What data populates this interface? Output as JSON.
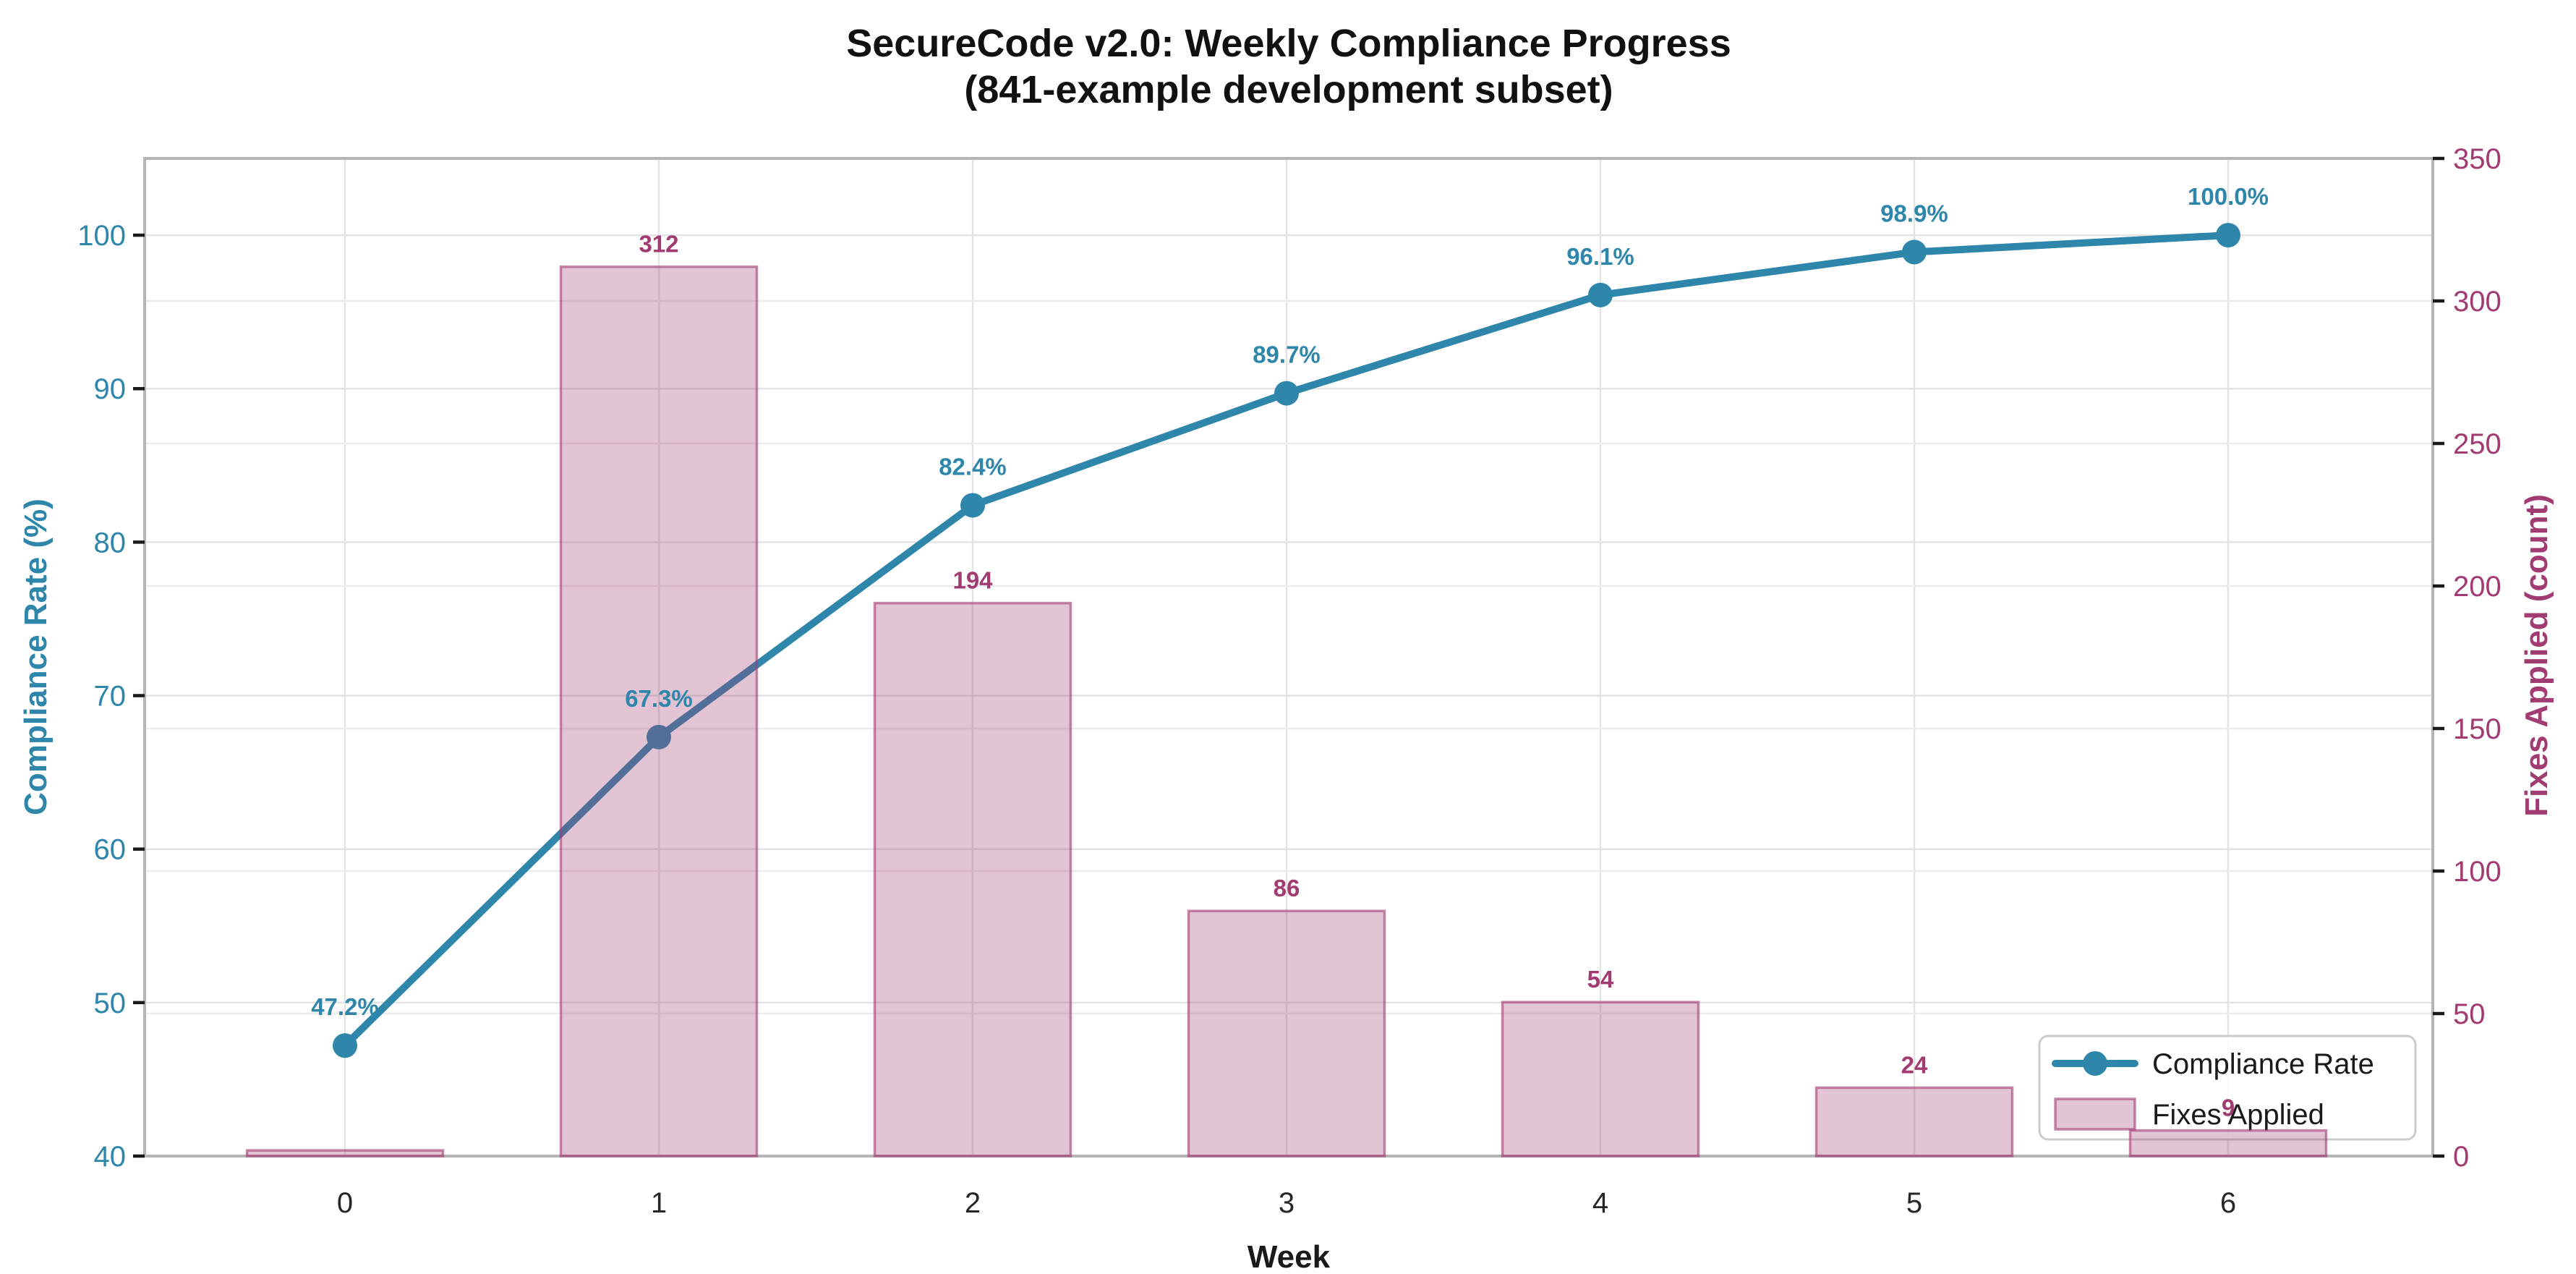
{
  "figure": {
    "title_line1": "SecureCode v2.0: Weekly Compliance Progress",
    "title_line2": "(841-example development subset)"
  },
  "axes": {
    "x": {
      "label": "Week",
      "tick_labels": [
        "0",
        "1",
        "2",
        "3",
        "4",
        "5",
        "6"
      ],
      "tick_color": "#262626"
    },
    "y_left": {
      "label": "Compliance Rate (%)",
      "tick_labels": [
        "40",
        "50",
        "60",
        "70",
        "80",
        "90",
        "100"
      ],
      "color": "#2E86AB"
    },
    "y_right": {
      "label": "Fixes Applied (count)",
      "tick_labels": [
        "0",
        "50",
        "100",
        "150",
        "200",
        "250",
        "300",
        "350"
      ],
      "color": "#A23B72"
    }
  },
  "legend": {
    "items": [
      {
        "label": "Compliance Rate",
        "swatch": "line-with-dot-marker"
      },
      {
        "label": "Fixes Applied",
        "swatch": "bar-rectangle"
      }
    ]
  },
  "chart_data": {
    "type": "combo-line-bar",
    "title": "SecureCode v2.0: Weekly Compliance Progress (841-example development subset)",
    "xlabel": "Week",
    "x": [
      0,
      1,
      2,
      3,
      4,
      5,
      6
    ],
    "grid": true,
    "legend_position": "lower right",
    "y_left": {
      "label": "Compliance Rate (%)",
      "lim": [
        40,
        105
      ],
      "ticks": [
        40,
        50,
        60,
        70,
        80,
        90,
        100
      ]
    },
    "y_right": {
      "label": "Fixes Applied (count)",
      "lim": [
        0,
        350
      ],
      "ticks": [
        0,
        50,
        100,
        150,
        200,
        250,
        300,
        350
      ]
    },
    "series": [
      {
        "name": "Compliance Rate",
        "type": "line",
        "axis": "left",
        "color": "#2E86AB",
        "values": [
          47.2,
          67.3,
          82.4,
          89.7,
          96.1,
          98.9,
          100.0
        ],
        "point_labels": [
          "47.2%",
          "67.3%",
          "82.4%",
          "89.7%",
          "96.1%",
          "98.9%",
          "100.0%"
        ]
      },
      {
        "name": "Fixes Applied",
        "type": "bar",
        "axis": "right",
        "fill_color": "rgba(162,59,114,0.30)",
        "edge_color": "rgba(162,59,114,0.60)",
        "label_color": "#A23B72",
        "values": [
          2,
          312,
          194,
          86,
          54,
          24,
          9
        ],
        "point_labels": [
          "",
          "312",
          "194",
          "86",
          "54",
          "24",
          "9"
        ]
      }
    ]
  }
}
